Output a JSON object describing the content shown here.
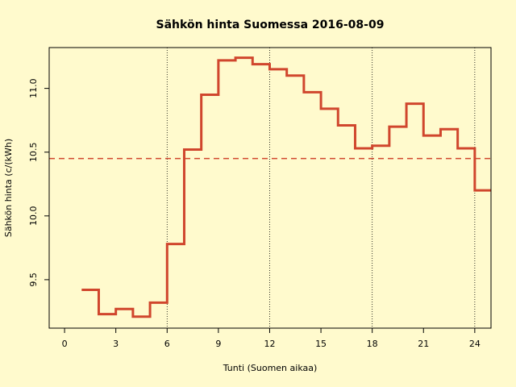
{
  "chart_data": {
    "type": "step",
    "title": "Sähkön hinta Suomessa 2016-08-09",
    "x_label": "Tunti (Suomen aikaa)",
    "y_label": "Sähkön hinta (c/(kWh)",
    "x": [
      1,
      2,
      3,
      4,
      5,
      6,
      7,
      8,
      9,
      10,
      11,
      12,
      13,
      14,
      15,
      16,
      17,
      18,
      19,
      20,
      21,
      22,
      23,
      24,
      25
    ],
    "values": [
      9.42,
      9.23,
      9.27,
      9.21,
      9.32,
      9.78,
      10.52,
      10.95,
      11.22,
      11.24,
      11.19,
      11.15,
      11.1,
      10.97,
      10.84,
      10.71,
      10.53,
      10.55,
      10.7,
      10.88,
      10.63,
      10.68,
      10.53,
      10.2,
      10.2
    ],
    "color": "#d0462d",
    "mean": 10.45,
    "vlines": [
      6,
      12,
      18,
      24
    ],
    "xlim": [
      -0.9,
      24.95
    ],
    "ylim": [
      9.12,
      11.32
    ],
    "xticks": [
      0,
      3,
      6,
      9,
      12,
      15,
      18,
      21,
      24
    ],
    "yticks": [
      9.5,
      {
        "value": 10,
        "label": "10.0"
      },
      10.5,
      {
        "value": 11,
        "label": "11.0"
      }
    ]
  }
}
